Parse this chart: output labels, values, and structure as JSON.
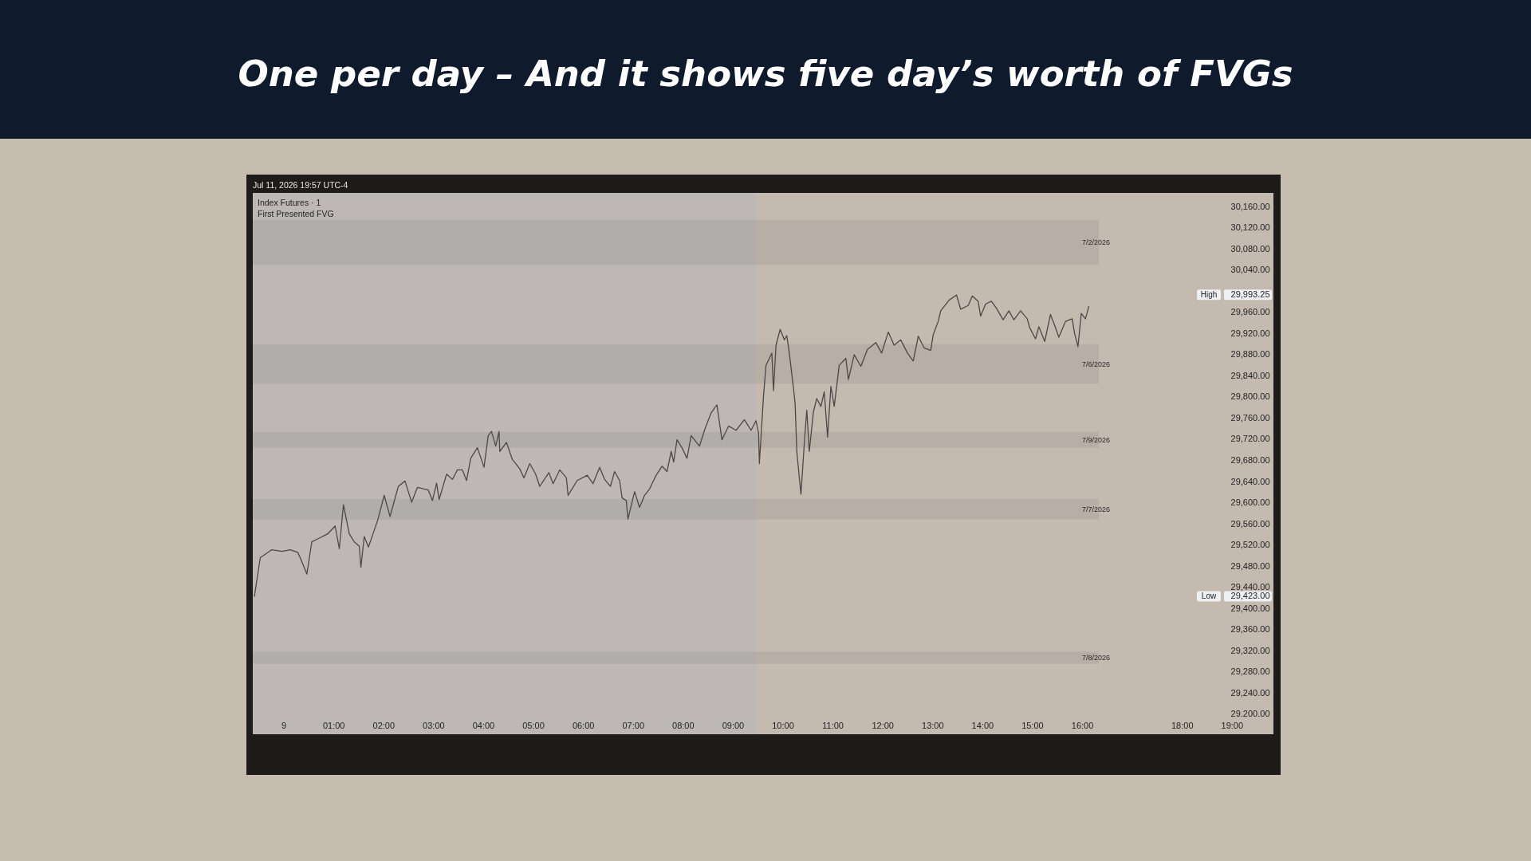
{
  "chart_data": {
    "type": "line",
    "title": "One per day – And it shows five day’s worth of FVGs",
    "annotations": [
      "Jul 11, 2026 19:57 UTC-4",
      "Index Futures · 1",
      "First Presented FVG",
      {
        "text": "High",
        "y": 29993.25
      },
      {
        "text": "Low",
        "y": 29423
      }
    ],
    "x": [
      "2026-07-08T23:25",
      "2026-07-08T23:32",
      "2026-07-08T23:46",
      "2026-07-08T23:58",
      "2026-07-09T00:08",
      "2026-07-09T00:17",
      "2026-07-09T00:20",
      "2026-07-09T00:28",
      "2026-07-09T00:34",
      "2026-07-09T00:43",
      "2026-07-09T00:53",
      "2026-07-09T01:02",
      "2026-07-09T01:07",
      "2026-07-09T01:12",
      "2026-07-09T01:19",
      "2026-07-09T01:25",
      "2026-07-09T01:31",
      "2026-07-09T01:33",
      "2026-07-09T01:37",
      "2026-07-09T01:42",
      "2026-07-09T01:53",
      "2026-07-09T02:01",
      "2026-07-09T02:08",
      "2026-07-09T02:18",
      "2026-07-09T02:26",
      "2026-07-09T02:34",
      "2026-07-09T02:41",
      "2026-07-09T02:54",
      "2026-07-09T02:59",
      "2026-07-09T03:04",
      "2026-07-09T03:07",
      "2026-07-09T03:16",
      "2026-07-09T03:23",
      "2026-07-09T03:29",
      "2026-07-09T03:35",
      "2026-07-09T03:40",
      "2026-07-09T03:45",
      "2026-07-09T03:53",
      "2026-07-09T04:01",
      "2026-07-09T04:06",
      "2026-07-09T04:10",
      "2026-07-09T04:15",
      "2026-07-09T04:19",
      "2026-07-09T04:20",
      "2026-07-09T04:28",
      "2026-07-09T04:35",
      "2026-07-09T04:44",
      "2026-07-09T04:49",
      "2026-07-09T04:56",
      "2026-07-09T05:03",
      "2026-07-09T05:08",
      "2026-07-09T05:19",
      "2026-07-09T05:24",
      "2026-07-09T05:32",
      "2026-07-09T05:40",
      "2026-07-09T05:42",
      "2026-07-09T05:53",
      "2026-07-09T06:05",
      "2026-07-09T06:12",
      "2026-07-09T06:20",
      "2026-07-09T06:26",
      "2026-07-09T06:33",
      "2026-07-09T06:38",
      "2026-07-09T06:44",
      "2026-07-09T06:47",
      "2026-07-09T06:52",
      "2026-07-09T06:54",
      "2026-07-09T07:02",
      "2026-07-09T07:08",
      "2026-07-09T07:14",
      "2026-07-09T07:20",
      "2026-07-09T07:28",
      "2026-07-09T07:35",
      "2026-07-09T07:41",
      "2026-07-09T07:46",
      "2026-07-09T07:49",
      "2026-07-09T07:53",
      "2026-07-09T07:59",
      "2026-07-09T08:05",
      "2026-07-09T08:10",
      "2026-07-09T08:20",
      "2026-07-09T08:26",
      "2026-07-09T08:34",
      "2026-07-09T08:41",
      "2026-07-09T08:47",
      "2026-07-09T08:55",
      "2026-07-09T09:04",
      "2026-07-09T09:14",
      "2026-07-09T09:22",
      "2026-07-09T09:28",
      "2026-07-09T09:31",
      "2026-07-09T09:32",
      "2026-07-09T09:37",
      "2026-07-09T09:40",
      "2026-07-09T09:44",
      "2026-07-09T09:47",
      "2026-07-09T09:49",
      "2026-07-09T09:52",
      "2026-07-09T09:57",
      "2026-07-09T10:02",
      "2026-07-09T10:05",
      "2026-07-09T10:08",
      "2026-07-09T10:13",
      "2026-07-09T10:15",
      "2026-07-09T10:17",
      "2026-07-09T10:22",
      "2026-07-09T10:26",
      "2026-07-09T10:29",
      "2026-07-09T10:32",
      "2026-07-09T10:37",
      "2026-07-09T10:41",
      "2026-07-09T10:46",
      "2026-07-09T10:50",
      "2026-07-09T10:54",
      "2026-07-09T10:58",
      "2026-07-09T11:02",
      "2026-07-09T11:08",
      "2026-07-09T11:16",
      "2026-07-09T11:19",
      "2026-07-09T11:26",
      "2026-07-09T11:34",
      "2026-07-09T11:42",
      "2026-07-09T11:52",
      "2026-07-09T11:59",
      "2026-07-09T12:07",
      "2026-07-09T12:14",
      "2026-07-09T12:22",
      "2026-07-09T12:30",
      "2026-07-09T12:37",
      "2026-07-09T12:43",
      "2026-07-09T12:50",
      "2026-07-09T12:58",
      "2026-07-09T13:01",
      "2026-07-09T13:07",
      "2026-07-09T13:10",
      "2026-07-09T13:20",
      "2026-07-09T13:29",
      "2026-07-09T13:34",
      "2026-07-09T13:43",
      "2026-07-09T13:48",
      "2026-07-09T13:55",
      "2026-07-09T13:58",
      "2026-07-09T14:04",
      "2026-07-09T14:11",
      "2026-07-09T14:17",
      "2026-07-09T14:25",
      "2026-07-09T14:32",
      "2026-07-09T14:38",
      "2026-07-09T14:46",
      "2026-07-09T14:54",
      "2026-07-09T14:57",
      "2026-07-09T15:04",
      "2026-07-09T15:08",
      "2026-07-09T15:15",
      "2026-07-09T15:22",
      "2026-07-09T15:28",
      "2026-07-09T15:32",
      "2026-07-09T15:40",
      "2026-07-09T15:48",
      "2026-07-09T15:51",
      "2026-07-09T15:55",
      "2026-07-09T15:59",
      "2026-07-09T16:04",
      "2026-07-09T16:08"
    ],
    "series": [
      {
        "color": "#4d4847",
        "values": [
          29423,
          29496,
          29511,
          29508,
          29511,
          29506,
          29496,
          29465,
          29526,
          29533,
          29541,
          29556,
          29513,
          29596,
          29541,
          29526,
          29518,
          29478,
          29536,
          29516,
          29566,
          29614,
          29574,
          29631,
          29641,
          29601,
          29629,
          29624,
          29604,
          29637,
          29606,
          29654,
          29644,
          29662,
          29662,
          29642,
          29684,
          29704,
          29667,
          29727,
          29735,
          29707,
          29735,
          29697,
          29714,
          29682,
          29664,
          29647,
          29674,
          29654,
          29631,
          29657,
          29636,
          29662,
          29647,
          29614,
          29642,
          29652,
          29636,
          29667,
          29644,
          29631,
          29659,
          29642,
          29609,
          29604,
          29569,
          29621,
          29591,
          29614,
          29626,
          29652,
          29669,
          29659,
          29697,
          29677,
          29719,
          29704,
          29684,
          29727,
          29707,
          29737,
          29770,
          29785,
          29719,
          29745,
          29737,
          29757,
          29737,
          29755,
          29732,
          29674,
          29802,
          29860,
          29873,
          29883,
          29812,
          29898,
          29928,
          29908,
          29916,
          29883,
          29817,
          29787,
          29697,
          29616,
          29712,
          29775,
          29697,
          29772,
          29797,
          29782,
          29810,
          29724,
          29820,
          29782,
          29860,
          29873,
          29833,
          29880,
          29858,
          29890,
          29903,
          29883,
          29923,
          29898,
          29908,
          29883,
          29868,
          29915,
          29893,
          29888,
          29918,
          29943,
          29963,
          29983,
          29993,
          29966,
          29973,
          29991,
          29981,
          29953,
          29976,
          29981,
          29968,
          29946,
          29963,
          29946,
          29963,
          29948,
          29931,
          29910,
          29933,
          29905,
          29956,
          29931,
          29913,
          29943,
          29948,
          29920,
          29895,
          29958,
          29948,
          29971
        ]
      }
    ],
    "xlim": [
      "2026-07-08T23:23",
      "2026-07-09T19:50"
    ],
    "xticks": [
      {
        "value": "2026-07-09T00:00",
        "label": "9"
      },
      {
        "value": "2026-07-09T01:00",
        "label": "01:00"
      },
      {
        "value": "2026-07-09T02:00",
        "label": "02:00"
      },
      {
        "value": "2026-07-09T03:00",
        "label": "03:00"
      },
      {
        "value": "2026-07-09T04:00",
        "label": "04:00"
      },
      {
        "value": "2026-07-09T05:00",
        "label": "05:00"
      },
      {
        "value": "2026-07-09T06:00",
        "label": "06:00"
      },
      {
        "value": "2026-07-09T07:00",
        "label": "07:00"
      },
      {
        "value": "2026-07-09T08:00",
        "label": "08:00"
      },
      {
        "value": "2026-07-09T09:00",
        "label": "09:00"
      },
      {
        "value": "2026-07-09T10:00",
        "label": "10:00"
      },
      {
        "value": "2026-07-09T11:00",
        "label": "11:00"
      },
      {
        "value": "2026-07-09T12:00",
        "label": "12:00"
      },
      {
        "value": "2026-07-09T13:00",
        "label": "13:00"
      },
      {
        "value": "2026-07-09T14:00",
        "label": "14:00"
      },
      {
        "value": "2026-07-09T15:00",
        "label": "15:00"
      },
      {
        "value": "2026-07-09T16:00",
        "label": "16:00"
      },
      {
        "value": "2026-07-09T18:00",
        "label": "18:00"
      },
      {
        "value": "2026-07-09T19:00",
        "label": "19:00"
      }
    ],
    "ylim": [
      29162,
      30186
    ],
    "yticks": [
      {
        "value": 30160,
        "label": "30,160.00"
      },
      {
        "value": 30120,
        "label": "30,120.00"
      },
      {
        "value": 30080,
        "label": "30,080.00"
      },
      {
        "value": 30040,
        "label": "30,040.00"
      },
      {
        "value": 29993.25,
        "label": "29,993.25"
      },
      {
        "value": 29960,
        "label": "29,960.00"
      },
      {
        "value": 29920,
        "label": "29,920.00"
      },
      {
        "value": 29880,
        "label": "29,880.00"
      },
      {
        "value": 29840,
        "label": "29,840.00"
      },
      {
        "value": 29800,
        "label": "29,800.00"
      },
      {
        "value": 29760,
        "label": "29,760.00"
      },
      {
        "value": 29720,
        "label": "29,720.00"
      },
      {
        "value": 29680,
        "label": "29,680.00"
      },
      {
        "value": 29640,
        "label": "29,640.00"
      },
      {
        "value": 29600,
        "label": "29,600.00"
      },
      {
        "value": 29560,
        "label": "29,560.00"
      },
      {
        "value": 29520,
        "label": "29,520.00"
      },
      {
        "value": 29480,
        "label": "29,480.00"
      },
      {
        "value": 29440,
        "label": "29,440.00"
      },
      {
        "value": 29423,
        "label": "29,423.00"
      },
      {
        "value": 29400,
        "label": "29,400.00"
      },
      {
        "value": 29360,
        "label": "29,360.00"
      },
      {
        "value": 29320,
        "label": "29,320.00"
      },
      {
        "value": 29280,
        "label": "29,280.00"
      },
      {
        "value": 29240,
        "label": "29,240.00"
      },
      {
        "value": 29200,
        "label": "29.200.00"
      }
    ],
    "bands": [
      {
        "axis": "x",
        "from": "2026-07-08T23:23",
        "to": "2026-07-09T09:28",
        "color": "#bdb8b6"
      },
      {
        "axis": "y",
        "from": 30050,
        "to": 30135,
        "label": "7/2/2026",
        "color": "#8f8a88"
      },
      {
        "axis": "y",
        "from": 29825,
        "to": 29900,
        "label": "7/6/2026",
        "color": "#8f8a88"
      },
      {
        "axis": "y",
        "from": 29704,
        "to": 29734,
        "label": "7/9/2026",
        "color": "#8f8a88"
      },
      {
        "axis": "y",
        "from": 29568,
        "to": 29607,
        "label": "7/7/2026",
        "color": "#8f8a88"
      },
      {
        "axis": "y",
        "from": 29295,
        "to": 29318,
        "label": "7/8/2026",
        "color": "#8f8a88"
      }
    ]
  }
}
